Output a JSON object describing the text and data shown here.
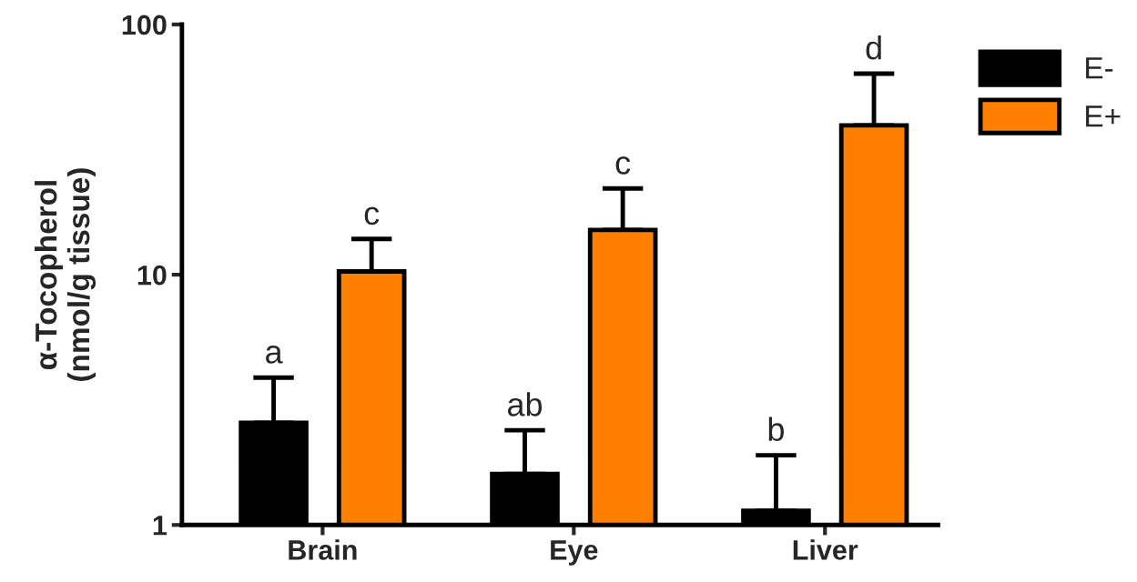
{
  "chart_data": {
    "type": "bar",
    "categories": [
      "Brain",
      "Eye",
      "Liver"
    ],
    "ylabel": "α-Tocopherol\n(nmol/g tissue)",
    "log": true,
    "ylim": [
      1,
      100
    ],
    "yticks": [
      1,
      10,
      100
    ],
    "grid": false,
    "legend": "top right",
    "series": [
      {
        "name": "E-",
        "color": "#000000",
        "values": [
          2.56,
          1.6,
          1.14
        ],
        "errors": [
          [
            2.56,
            3.88
          ],
          [
            1.6,
            2.39
          ],
          [
            1.14,
            1.9
          ]
        ],
        "value_labels": [
          "a",
          "ab",
          "b"
        ]
      },
      {
        "name": "E+",
        "color": "#ff8000",
        "values": [
          10.3,
          15.1,
          39.5
        ],
        "errors": [
          [
            10.3,
            13.9
          ],
          [
            15.1,
            22.1
          ],
          [
            39.5,
            63.6
          ]
        ],
        "value_labels": [
          "c",
          "c",
          "d"
        ]
      }
    ]
  }
}
